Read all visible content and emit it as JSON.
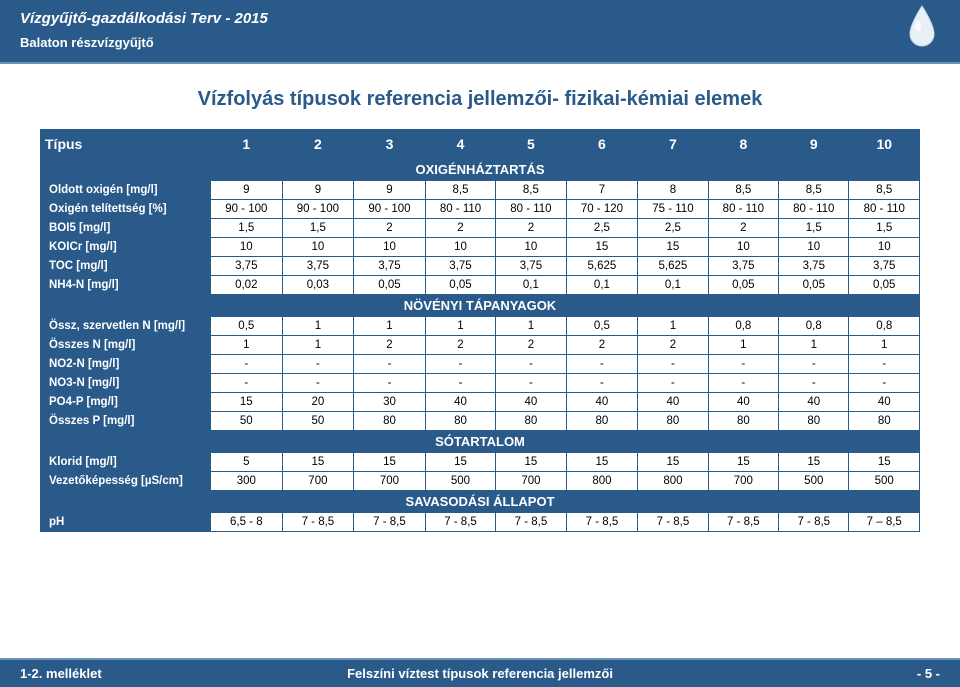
{
  "header": {
    "title": "Vízgyűjtő-gazdálkodási Terv - 2015",
    "sub": "Balaton részvízgyűjtő"
  },
  "main_title": "Vízfolyás típusok referencia jellemzői- fizikai-kémiai elemek",
  "col_header": "Típus",
  "cols": [
    "1",
    "2",
    "3",
    "4",
    "5",
    "6",
    "7",
    "8",
    "9",
    "10"
  ],
  "sections": [
    {
      "title": "OXIGÉNHÁZTARTÁS",
      "rows": [
        {
          "label": "Oldott oxigén [mg/l]",
          "v": [
            "9",
            "9",
            "9",
            "8,5",
            "8,5",
            "7",
            "8",
            "8,5",
            "8,5",
            "8,5"
          ]
        },
        {
          "label": "Oxigén telítettség [%]",
          "v": [
            "90 - 100",
            "90 - 100",
            "90 - 100",
            "80 - 110",
            "80 - 110",
            "70 - 120",
            "75 - 110",
            "80 - 110",
            "80 - 110",
            "80 - 110"
          ]
        },
        {
          "label": "BOI5 [mg/l]",
          "v": [
            "1,5",
            "1,5",
            "2",
            "2",
            "2",
            "2,5",
            "2,5",
            "2",
            "1,5",
            "1,5"
          ]
        },
        {
          "label": "KOICr [mg/l]",
          "v": [
            "10",
            "10",
            "10",
            "10",
            "10",
            "15",
            "15",
            "10",
            "10",
            "10"
          ]
        },
        {
          "label": "TOC [mg/l]",
          "v": [
            "3,75",
            "3,75",
            "3,75",
            "3,75",
            "3,75",
            "5,625",
            "5,625",
            "3,75",
            "3,75",
            "3,75"
          ]
        },
        {
          "label": "NH4-N [mg/l]",
          "v": [
            "0,02",
            "0,03",
            "0,05",
            "0,05",
            "0,1",
            "0,1",
            "0,1",
            "0,05",
            "0,05",
            "0,05"
          ]
        }
      ]
    },
    {
      "title": "NÖVÉNYI TÁPANYAGOK",
      "rows": [
        {
          "label": "Össz, szervetlen N [mg/l]",
          "v": [
            "0,5",
            "1",
            "1",
            "1",
            "1",
            "0,5",
            "1",
            "0,8",
            "0,8",
            "0,8"
          ]
        },
        {
          "label": "Összes N [mg/l]",
          "v": [
            "1",
            "1",
            "2",
            "2",
            "2",
            "2",
            "2",
            "1",
            "1",
            "1"
          ]
        },
        {
          "label": "NO2-N [mg/l]",
          "v": [
            "-",
            "-",
            "-",
            "-",
            "-",
            "-",
            "-",
            "-",
            "-",
            "-"
          ]
        },
        {
          "label": "NO3-N [mg/l]",
          "v": [
            "-",
            "-",
            "-",
            "-",
            "-",
            "-",
            "-",
            "-",
            "-",
            "-"
          ]
        },
        {
          "label": "PO4-P [mg/l]",
          "v": [
            "15",
            "20",
            "30",
            "40",
            "40",
            "40",
            "40",
            "40",
            "40",
            "40"
          ]
        },
        {
          "label": "Összes P [mg/l]",
          "v": [
            "50",
            "50",
            "80",
            "80",
            "80",
            "80",
            "80",
            "80",
            "80",
            "80"
          ]
        }
      ]
    },
    {
      "title": "SÓTARTALOM",
      "rows": [
        {
          "label": "Klorid [mg/l]",
          "v": [
            "5",
            "15",
            "15",
            "15",
            "15",
            "15",
            "15",
            "15",
            "15",
            "15"
          ]
        },
        {
          "label": "Vezetőképesség [µS/cm]",
          "v": [
            "300",
            "700",
            "700",
            "500",
            "700",
            "800",
            "800",
            "700",
            "500",
            "500"
          ]
        }
      ]
    },
    {
      "title": "SAVASODÁSI ÁLLAPOT",
      "rows": [
        {
          "label": "pH",
          "v": [
            "6,5 - 8",
            "7 - 8,5",
            "7 - 8,5",
            "7 - 8,5",
            "7 - 8,5",
            "7 - 8,5",
            "7 - 8,5",
            "7 - 8,5",
            "7 - 8,5",
            "7 – 8,5"
          ]
        }
      ]
    }
  ],
  "footer": {
    "left": "1-2. melléklet",
    "center": "Felszíni víztest típusok referencia jellemzői",
    "right": "- 5 -"
  },
  "colors": {
    "brand": "#2a5a8a",
    "border": "#2a5a8a",
    "bg": "#ffffff"
  }
}
